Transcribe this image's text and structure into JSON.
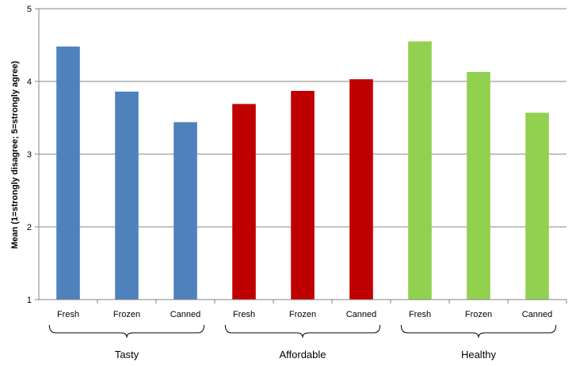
{
  "chart_data": {
    "type": "bar",
    "ylabel": "Mean (1=strongly disagree; 5=strongly agree)",
    "ylim": [
      1,
      5
    ],
    "yticks": [
      "1",
      "2",
      "3",
      "4",
      "5"
    ],
    "grid": true,
    "groups": [
      {
        "name": "Tasty",
        "color": "#4F81BD",
        "categories": [
          "Fresh",
          "Frozen",
          "Canned"
        ],
        "values": [
          4.48,
          3.86,
          3.44
        ]
      },
      {
        "name": "Affordable",
        "color": "#C00000",
        "categories": [
          "Fresh",
          "Frozen",
          "Canned"
        ],
        "values": [
          3.69,
          3.87,
          4.03
        ]
      },
      {
        "name": "Healthy",
        "color": "#92D050",
        "categories": [
          "Fresh",
          "Frozen",
          "Canned"
        ],
        "values": [
          4.55,
          4.13,
          3.57
        ]
      }
    ]
  }
}
